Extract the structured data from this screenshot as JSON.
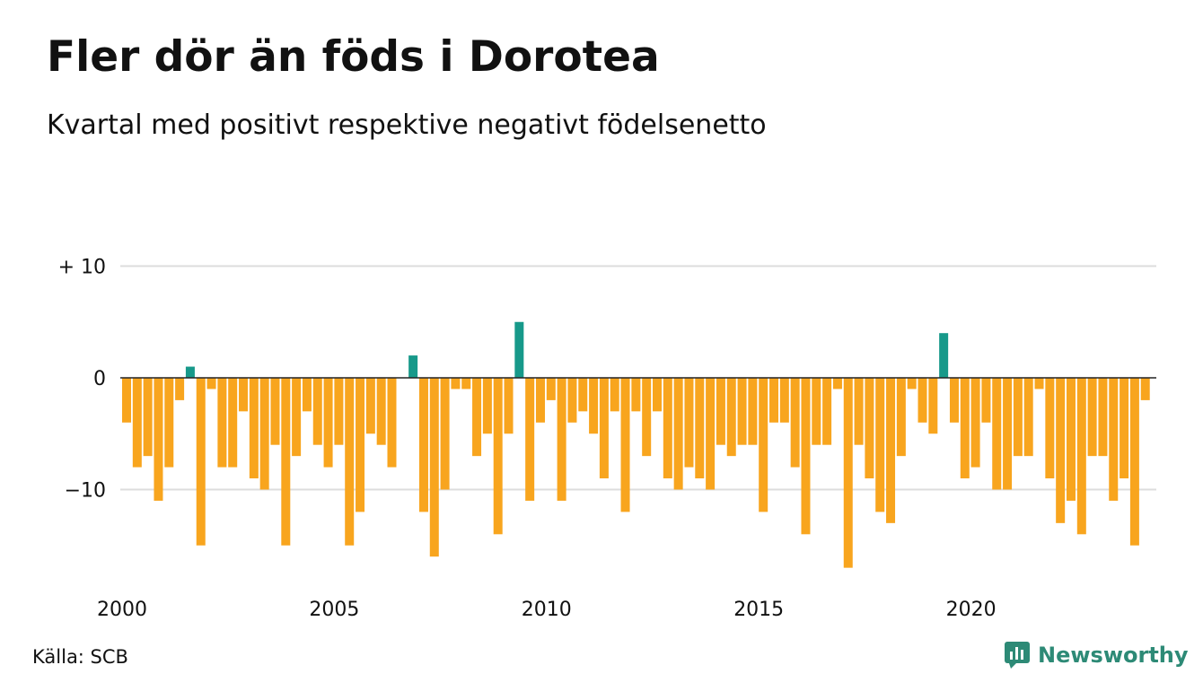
{
  "header": {
    "title": "Fler dör än föds i Dorotea",
    "subtitle": "Kvartal med positivt respektive negativt födelsenetto"
  },
  "footer": {
    "source": "Källa: SCB",
    "brand": "Newsworthy"
  },
  "colors": {
    "positive": "#17998a",
    "negative": "#f8a51e",
    "gridline": "#dddddd",
    "zero_line": "#222222",
    "brand": "#2d8a76"
  },
  "chart_data": {
    "type": "bar",
    "x_start_year": 2000,
    "periods_per_year": 4,
    "values": [
      -4,
      -8,
      -7,
      -11,
      -8,
      -2,
      1,
      -15,
      -1,
      -8,
      -8,
      -3,
      -9,
      -10,
      -6,
      -15,
      -7,
      -3,
      -6,
      -8,
      -6,
      -15,
      -12,
      -5,
      -6,
      -8,
      0,
      2,
      -12,
      -16,
      -10,
      -1,
      -1,
      -7,
      -5,
      -14,
      -5,
      5,
      -11,
      -4,
      -2,
      -11,
      -4,
      -3,
      -5,
      -9,
      -3,
      -12,
      -3,
      -7,
      -3,
      -9,
      -10,
      -8,
      -9,
      -10,
      -6,
      -7,
      -6,
      -6,
      -12,
      -4,
      -4,
      -8,
      -14,
      -6,
      -6,
      -1,
      -17,
      -6,
      -9,
      -12,
      -13,
      -7,
      -1,
      -4,
      -5,
      4,
      -4,
      -9,
      -8,
      -4,
      -10,
      -10,
      -7,
      -7,
      -1,
      -9,
      -13,
      -11,
      -14,
      -7,
      -7,
      -11,
      -9,
      -15,
      -2
    ],
    "x_ticks": [
      "2000",
      "2005",
      "2010",
      "2015",
      "2020"
    ],
    "y_ticks": [
      {
        "value": 10,
        "label": "+ 10"
      },
      {
        "value": 0,
        "label": "0"
      },
      {
        "value": -10,
        "label": "−10"
      }
    ],
    "ylim": [
      -18,
      10
    ],
    "grid": true,
    "legend": "none"
  }
}
